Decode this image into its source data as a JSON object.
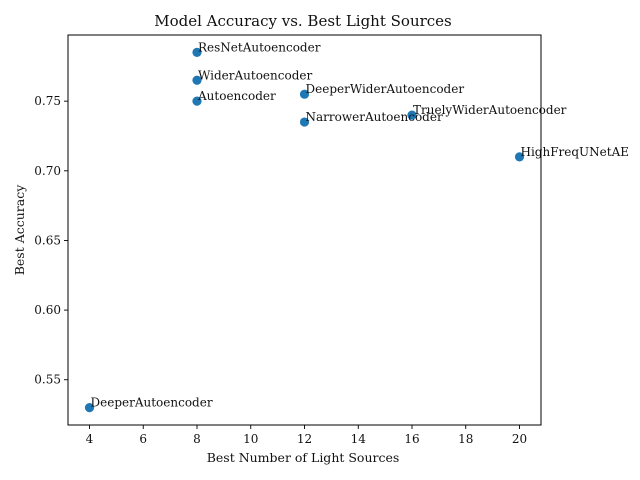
{
  "chart_data": {
    "type": "scatter",
    "title": "Model Accuracy vs. Best Light Sources",
    "xlabel": "Best Number of Light Sources",
    "ylabel": "Best Accuracy",
    "xlim": [
      3.2,
      20.8
    ],
    "ylim": [
      0.5175,
      0.7975
    ],
    "xticks": [
      "4",
      "6",
      "8",
      "10",
      "12",
      "14",
      "16",
      "18",
      "20"
    ],
    "yticks": [
      "0.55",
      "0.60",
      "0.65",
      "0.70",
      "0.75"
    ],
    "grid": false,
    "marker_color": "#1f77b4",
    "points": [
      {
        "label": "ResNetAutoencoder",
        "x": 8,
        "y": 0.785
      },
      {
        "label": "WiderAutoencoder",
        "x": 8,
        "y": 0.765
      },
      {
        "label": "Autoencoder",
        "x": 8,
        "y": 0.75
      },
      {
        "label": "DeeperWiderAutoencoder",
        "x": 12,
        "y": 0.755
      },
      {
        "label": "NarrowerAutoencoder",
        "x": 12,
        "y": 0.735
      },
      {
        "label": "TruelyWiderAutoencoder",
        "x": 16,
        "y": 0.74
      },
      {
        "label": "HighFreqUNetAE",
        "x": 20,
        "y": 0.71
      },
      {
        "label": "DeeperAutoencoder",
        "x": 4,
        "y": 0.53
      }
    ]
  }
}
